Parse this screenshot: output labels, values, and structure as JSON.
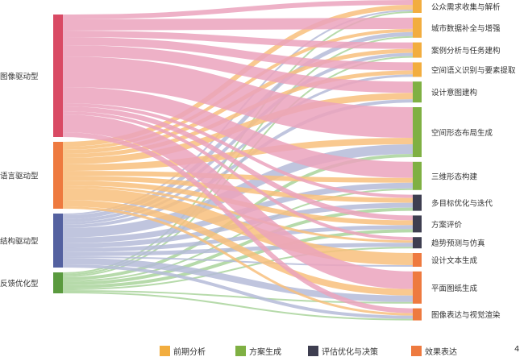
{
  "sources": [
    {
      "label": "图像驱动型",
      "color": "#d94a64",
      "link_color": "#eba3bd"
    },
    {
      "label": "语言驱动型",
      "color": "#ee7a3f",
      "link_color": "#f8c07c"
    },
    {
      "label": "结构驱动型",
      "color": "#5461a0",
      "link_color": "#b5bbd8"
    },
    {
      "label": "反馈优化型",
      "color": "#5a9a3e",
      "link_color": "#a9d49b"
    }
  ],
  "targets": [
    {
      "label": "公众需求收集与解析",
      "group": 0
    },
    {
      "label": "城市数据补全与增强",
      "group": 0
    },
    {
      "label": "案例分析与任务建构",
      "group": 0
    },
    {
      "label": "空间语义识别与要素提取",
      "group": 0
    },
    {
      "label": "设计意图建构",
      "group": 1
    },
    {
      "label": "空间形态布局生成",
      "group": 1
    },
    {
      "label": "三维形态构建",
      "group": 1
    },
    {
      "label": "多目标优化与迭代",
      "group": 2
    },
    {
      "label": "方案评价",
      "group": 2
    },
    {
      "label": "趋势预测与仿真",
      "group": 2
    },
    {
      "label": "设计文本生成",
      "group": 3
    },
    {
      "label": "平面图纸生成",
      "group": 3
    },
    {
      "label": "图像表达与视觉渲染",
      "group": 3
    }
  ],
  "links": [
    [
      6,
      6,
      2,
      2
    ],
    [
      14,
      4,
      5,
      2
    ],
    [
      8,
      5,
      4,
      2
    ],
    [
      10,
      5,
      3,
      0
    ],
    [
      14,
      8,
      4,
      0
    ],
    [
      38,
      8,
      12,
      4
    ],
    [
      20,
      6,
      7,
      2
    ],
    [
      4,
      6,
      6,
      4
    ],
    [
      6,
      6,
      5,
      4
    ],
    [
      4,
      3,
      5,
      2
    ],
    [
      0,
      15,
      2,
      0
    ],
    [
      22,
      8,
      8,
      2
    ],
    [
      6,
      3,
      4,
      2
    ]
  ],
  "legend": [
    {
      "label": "前期分析",
      "color": "#f2ad3f"
    },
    {
      "label": "方案生成",
      "color": "#7fb043"
    },
    {
      "label": "评估优化与决策",
      "color": "#3e3e50"
    },
    {
      "label": "效果表达",
      "color": "#ee7a3f"
    }
  ],
  "page_number": "4"
}
